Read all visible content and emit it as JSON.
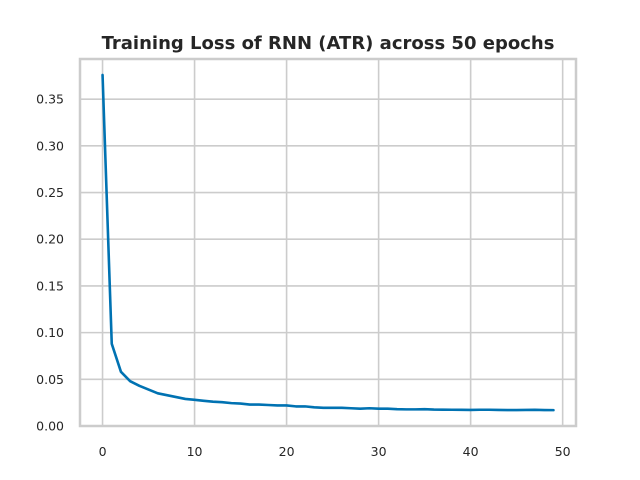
{
  "chart_data": {
    "type": "line",
    "title": "Training Loss of RNN (ATR) across 50 epochs",
    "xlabel": "",
    "ylabel": "",
    "xlim": [
      -2.45,
      51.45
    ],
    "ylim": [
      0,
      0.393
    ],
    "x_ticks": [
      0,
      10,
      20,
      30,
      40,
      50
    ],
    "y_ticks": [
      0.0,
      0.05,
      0.1,
      0.15,
      0.2,
      0.25,
      0.3,
      0.35
    ],
    "y_tick_labels": [
      "0.00",
      "0.05",
      "0.10",
      "0.15",
      "0.20",
      "0.25",
      "0.30",
      "0.35"
    ],
    "x_tick_labels": [
      "0",
      "10",
      "20",
      "30",
      "40",
      "50"
    ],
    "grid": true,
    "legend": "none",
    "line_color": "#0072b2",
    "x": [
      0,
      1,
      2,
      3,
      4,
      5,
      6,
      7,
      8,
      9,
      10,
      11,
      12,
      13,
      14,
      15,
      16,
      17,
      18,
      19,
      20,
      21,
      22,
      23,
      24,
      25,
      26,
      27,
      28,
      29,
      30,
      31,
      32,
      33,
      34,
      35,
      36,
      37,
      38,
      39,
      40,
      41,
      42,
      43,
      44,
      45,
      46,
      47,
      48,
      49
    ],
    "values": [
      0.376,
      0.088,
      0.058,
      0.048,
      0.043,
      0.039,
      0.035,
      0.033,
      0.031,
      0.029,
      0.028,
      0.027,
      0.026,
      0.0255,
      0.0245,
      0.024,
      0.023,
      0.023,
      0.0225,
      0.022,
      0.022,
      0.021,
      0.021,
      0.02,
      0.0195,
      0.0195,
      0.0195,
      0.019,
      0.0185,
      0.019,
      0.0185,
      0.0185,
      0.018,
      0.0178,
      0.0178,
      0.018,
      0.0176,
      0.0175,
      0.0174,
      0.0173,
      0.0172,
      0.0174,
      0.0174,
      0.0172,
      0.0171,
      0.0171,
      0.0172,
      0.0173,
      0.0171,
      0.017
    ]
  }
}
